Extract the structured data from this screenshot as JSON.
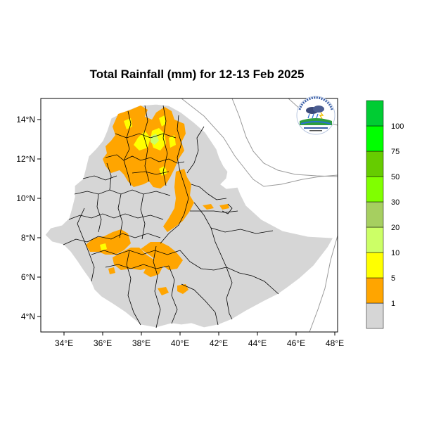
{
  "title": "Total Rainfall (mm) for 12-13 Feb 2025",
  "colors": {
    "land": "#d6d6d6",
    "border": "#000000",
    "coast": "#9a9a9a",
    "rain_1": "#ffa500",
    "rain_5": "#ffff00",
    "rain_10": "#ccff66"
  },
  "x_ticks": [
    "34°E",
    "36°E",
    "38°E",
    "40°E",
    "42°E",
    "44°E",
    "46°E",
    "48°E"
  ],
  "y_ticks": [
    "14°N",
    "12°N",
    "10°N",
    "8°N",
    "6°N",
    "4°N"
  ],
  "legend": {
    "labels": [
      "1",
      "5",
      "10",
      "20",
      "30",
      "50",
      "75",
      "100"
    ],
    "colors": [
      "#d6d6d6",
      "#ffa500",
      "#ffff00",
      "#ccff66",
      "#a6cf60",
      "#80ff00",
      "#66cc00",
      "#00ff00",
      "#00cc33",
      "#228b22"
    ]
  },
  "logo": {
    "icon_name": "meteorology-agency-logo"
  }
}
